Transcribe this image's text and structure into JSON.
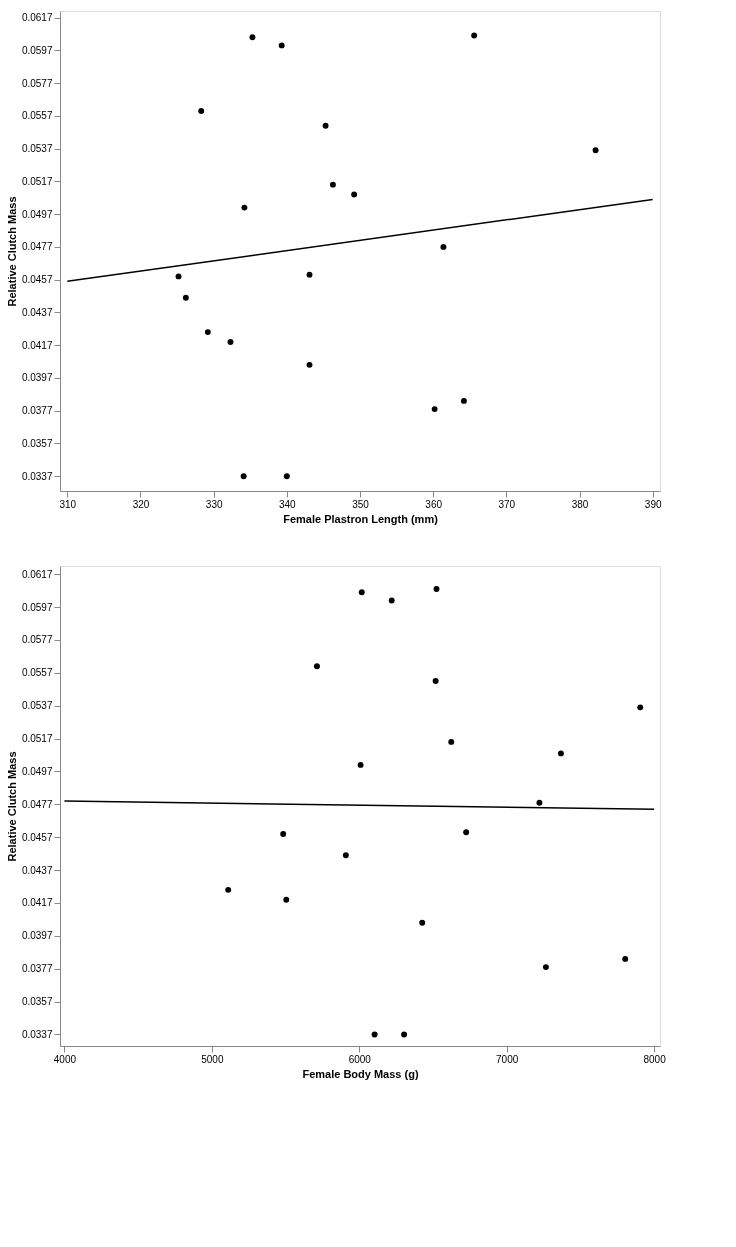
{
  "chart_data": [
    {
      "type": "scatter",
      "xlabel": "Female Plastron Length (mm)",
      "ylabel": "Relative Clutch Mass",
      "grid": false,
      "xlim": [
        309,
        391
      ],
      "xticks": [
        310,
        320,
        330,
        340,
        350,
        360,
        370,
        380,
        390
      ],
      "ylim": [
        0.0328,
        0.0621
      ],
      "yticks": [
        0.0337,
        0.0357,
        0.0377,
        0.0397,
        0.0417,
        0.0437,
        0.0457,
        0.0477,
        0.0497,
        0.0517,
        0.0537,
        0.0557,
        0.0577,
        0.0597,
        0.0617
      ],
      "series": [
        {
          "marker": "circle",
          "color": "#000000",
          "x": [
            335.3,
            339.3,
            365.6,
            328.3,
            345.3,
            382.2,
            346.3,
            349.2,
            334.2,
            361.4,
            325.2,
            343.1,
            326.2,
            329.2,
            332.3,
            343.1,
            360.2,
            364.2,
            334.1,
            340.0
          ],
          "values": [
            0.0605,
            0.06,
            0.0606,
            0.056,
            0.0551,
            0.0536,
            0.0515,
            0.0509,
            0.0501,
            0.0477,
            0.0459,
            0.046,
            0.0446,
            0.0425,
            0.0419,
            0.0405,
            0.0378,
            0.0383,
            0.0337,
            0.0337
          ]
        },
        {
          "type": "line",
          "color": "#000000",
          "x": [
            310,
            390
          ],
          "values": [
            0.0456,
            0.0506
          ]
        }
      ]
    },
    {
      "type": "scatter",
      "xlabel": "Female Body Mass (g)",
      "ylabel": "Relative Clutch Mass",
      "grid": false,
      "xlim": [
        3970,
        8040
      ],
      "xticks": [
        4000,
        5000,
        6000,
        7000,
        8000
      ],
      "ylim": [
        0.033,
        0.0622
      ],
      "yticks": [
        0.0337,
        0.0357,
        0.0377,
        0.0397,
        0.0417,
        0.0437,
        0.0457,
        0.0477,
        0.0497,
        0.0517,
        0.0537,
        0.0557,
        0.0577,
        0.0597,
        0.0617
      ],
      "series": [
        {
          "marker": "circle",
          "color": "#000000",
          "x": [
            6017,
            6220,
            6524,
            5713,
            6518,
            7906,
            6624,
            7368,
            6009,
            7222,
            5484,
            6725,
            5909,
            5111,
            5505,
            6427,
            7266,
            7804,
            6104,
            6304
          ],
          "values": [
            0.0606,
            0.0601,
            0.0608,
            0.0561,
            0.0552,
            0.0536,
            0.0515,
            0.0508,
            0.0501,
            0.0478,
            0.0459,
            0.046,
            0.0446,
            0.0425,
            0.0419,
            0.0405,
            0.0378,
            0.0383,
            0.0337,
            0.0337
          ]
        },
        {
          "type": "line",
          "color": "#000000",
          "x": [
            4000,
            8000
          ],
          "values": [
            0.0479,
            0.0474
          ]
        }
      ]
    }
  ]
}
